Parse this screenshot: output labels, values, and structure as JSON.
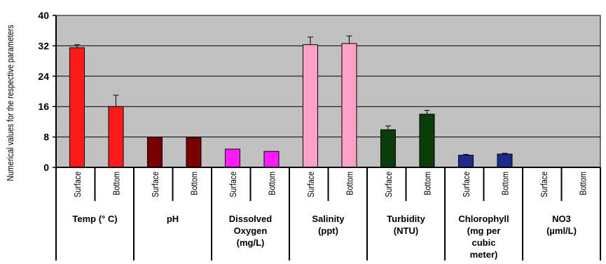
{
  "chart_data": {
    "type": "bar",
    "ylabel": "Numerical values for the respective parameters",
    "ylim": [
      0,
      40
    ],
    "yticks": [
      0,
      8,
      16,
      24,
      32,
      40
    ],
    "grid": true,
    "sublabels": [
      "Surface",
      "Bottom"
    ],
    "groups": [
      {
        "label": [
          "Temp (° C)"
        ],
        "color": "#ff1a1a",
        "values": [
          31.5,
          16.0
        ],
        "errors": [
          0.8,
          3.0
        ]
      },
      {
        "label": [
          "pH"
        ],
        "color": "#7a0000",
        "values": [
          7.9,
          7.8
        ],
        "errors": [
          0.0,
          0.0
        ]
      },
      {
        "label": [
          "Dissolved",
          "Oxygen",
          "(mg/L)"
        ],
        "color": "#ff1aff",
        "values": [
          4.8,
          4.2
        ],
        "errors": [
          0.0,
          0.0
        ]
      },
      {
        "label": [
          "Salinity",
          "(ppt)"
        ],
        "color": "#ffa0c8",
        "values": [
          32.3,
          32.6
        ],
        "errors": [
          2.0,
          2.0
        ]
      },
      {
        "label": [
          "Turbidity",
          "(NTU)"
        ],
        "color": "#0b3d0b",
        "values": [
          9.9,
          14.0
        ],
        "errors": [
          1.0,
          1.0
        ]
      },
      {
        "label": [
          "Chlorophyll",
          "(mg per",
          "cubic",
          "meter)"
        ],
        "color": "#1a2b8c",
        "values": [
          3.2,
          3.5
        ],
        "errors": [
          0.2,
          0.2
        ]
      },
      {
        "label": [
          "NO3",
          "(µml/L)"
        ],
        "color": "#1a2b8c",
        "values": [
          0.05,
          0.05
        ],
        "errors": [
          0.0,
          0.0
        ]
      }
    ]
  },
  "colors": {
    "plot_bg": "#c0c0c0",
    "grid": "#000000",
    "axis": "#000000"
  }
}
